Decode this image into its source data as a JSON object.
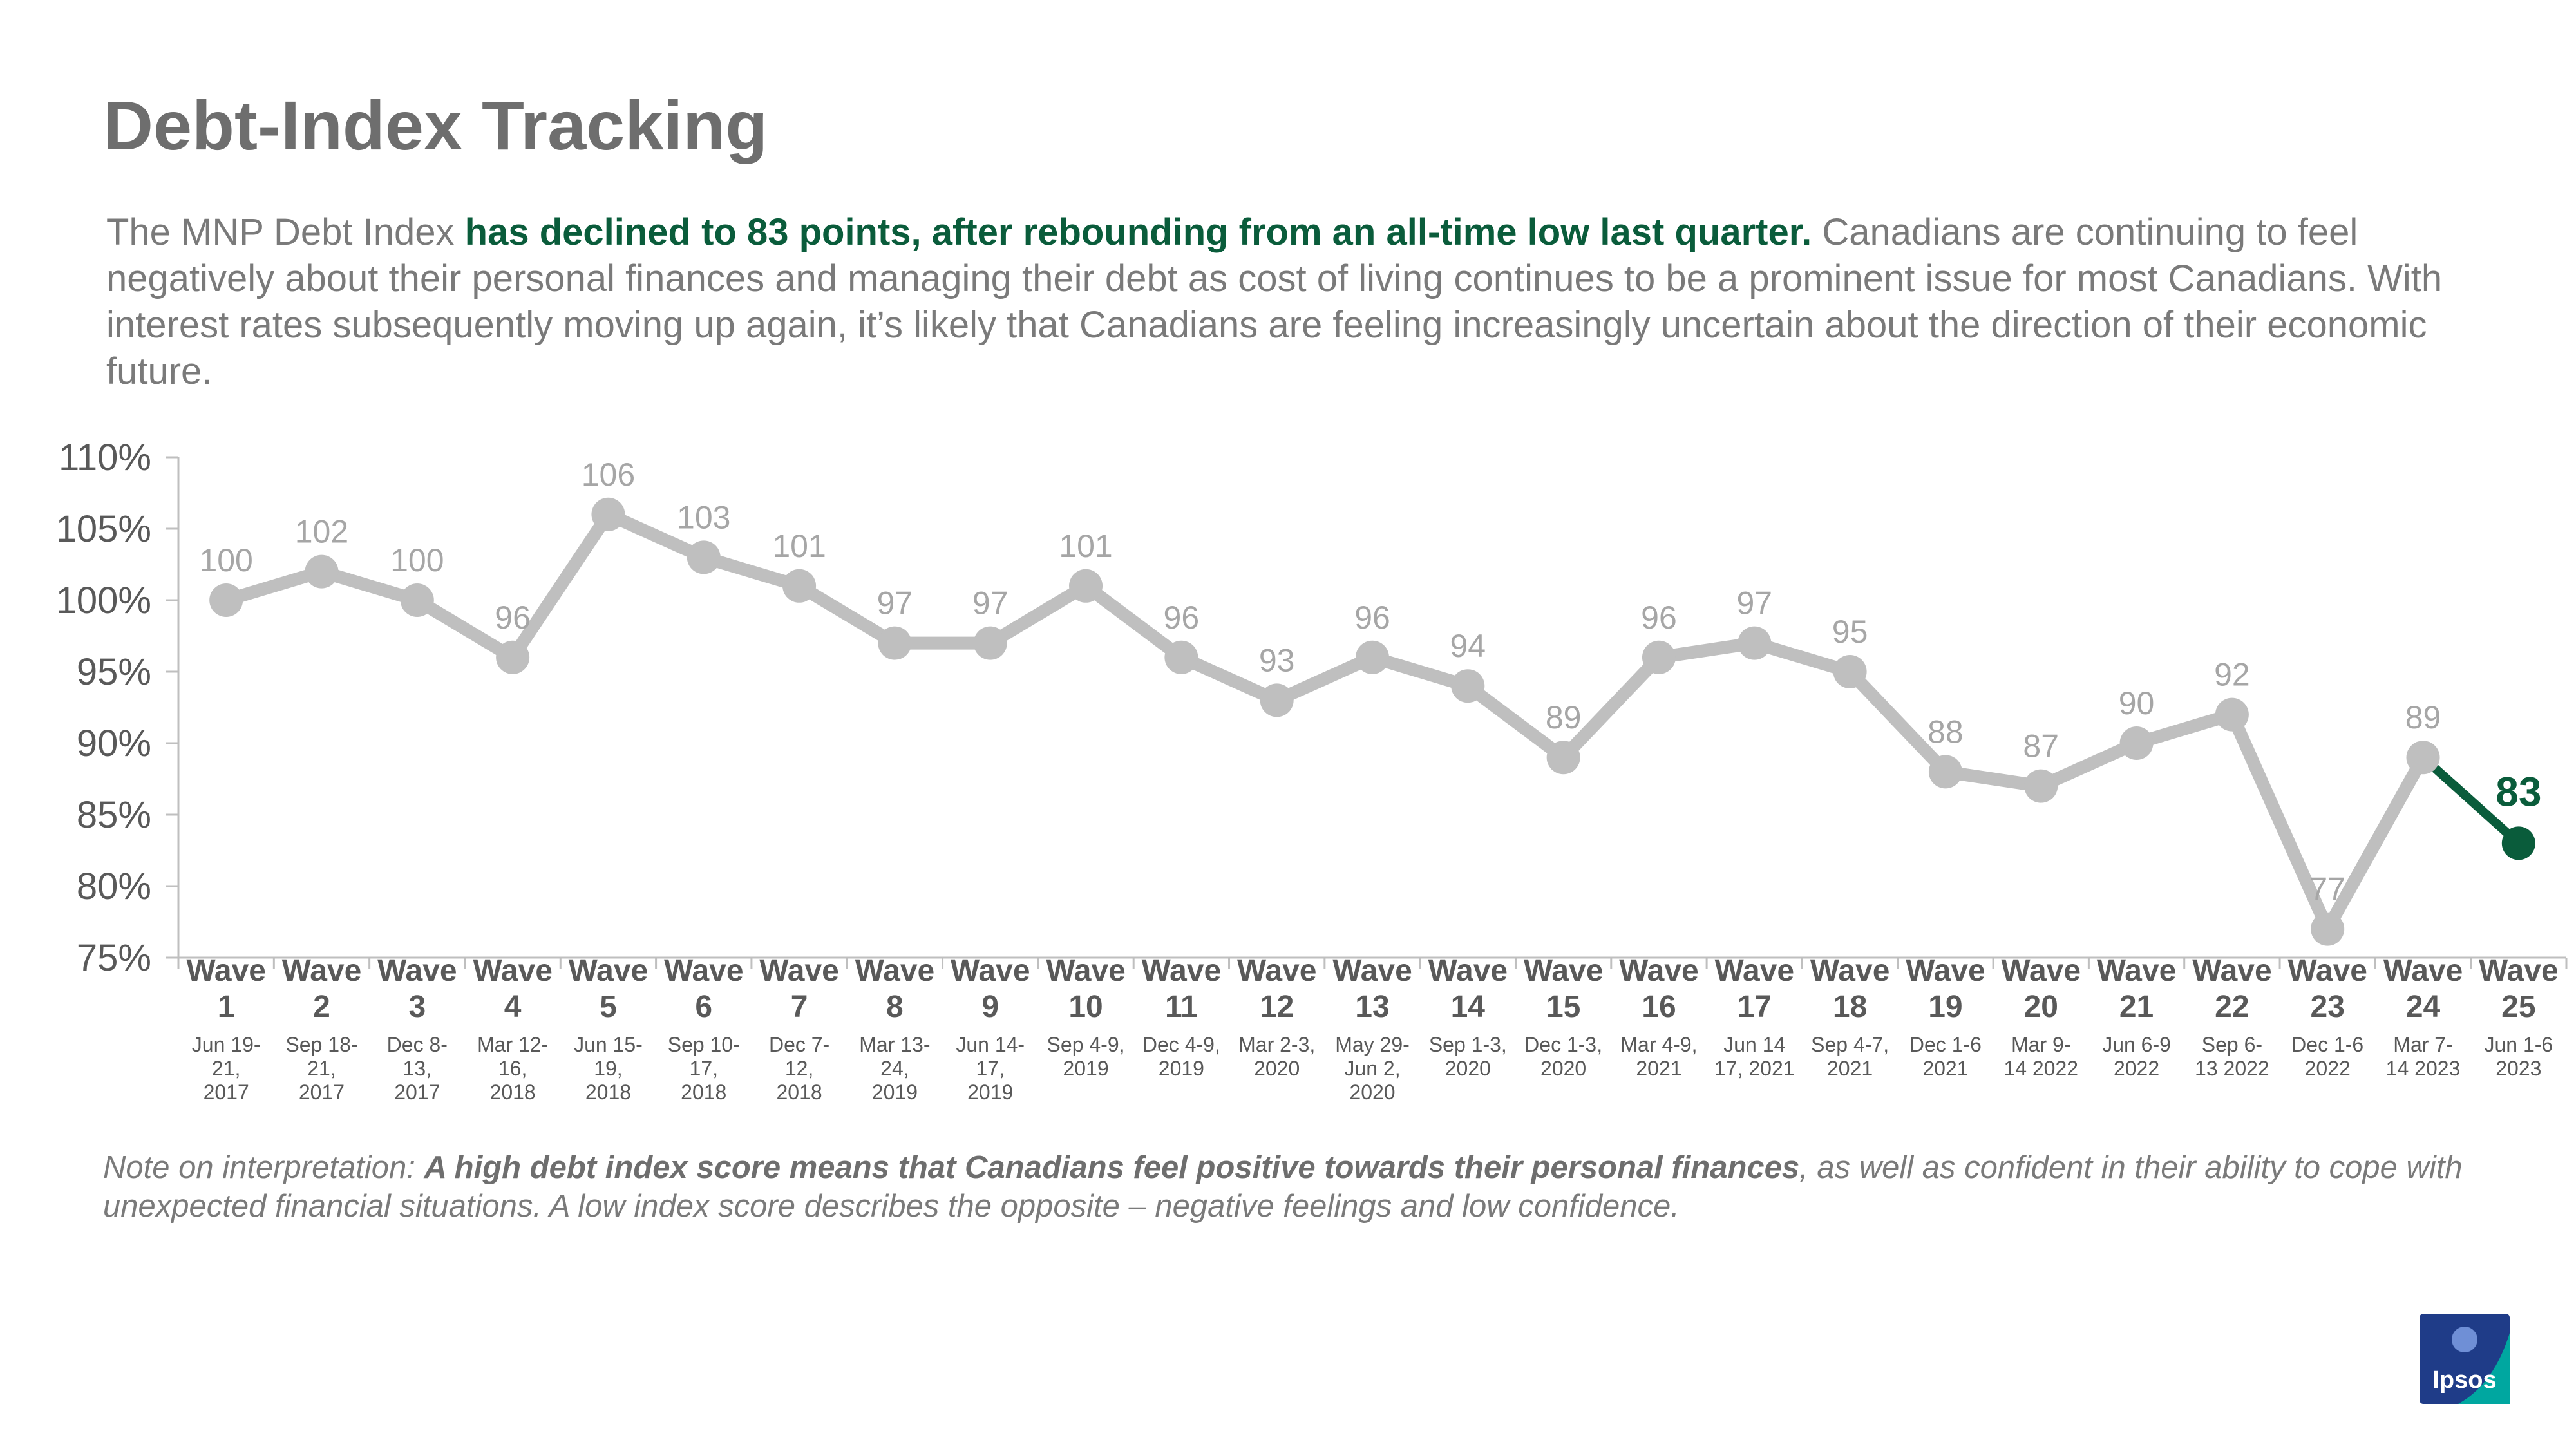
{
  "title": "Debt-Index Tracking",
  "intro": {
    "lead": "The MNP Debt Index ",
    "highlight": "has declined to 83 points, after rebounding from an all-time low last quarter.",
    "rest": " Canadians are continuing to feel negatively about their personal finances and managing their debt as cost of living continues to be a prominent issue for most Canadians. With interest rates subsequently moving up again, it’s likely that Canadians are feeling increasingly uncertain about the direction of their economic future."
  },
  "note": {
    "lead": "Note on interpretation: ",
    "bold": "A high debt index score means that Canadians feel positive towards their personal finances",
    "rest": ", as well as confident in their ability to cope with unexpected financial situations. A low index score describes the opposite – negative feelings and low confidence."
  },
  "logo_text": "Ipsos",
  "colors": {
    "series": "#bfbfbf",
    "highlight": "#0a5c3b",
    "axis_text": "#595959",
    "label": "#a6a6a6",
    "logo": "#1f3c88",
    "logo_accent": "#00a7a0"
  },
  "chart_data": {
    "type": "line",
    "categories": [
      {
        "wave": "Wave",
        "num": "1",
        "date": [
          "Jun 19-",
          "21,",
          "2017"
        ]
      },
      {
        "wave": "Wave",
        "num": "2",
        "date": [
          "Sep 18-",
          "21,",
          "2017"
        ]
      },
      {
        "wave": "Wave",
        "num": "3",
        "date": [
          "Dec 8-",
          "13,",
          "2017"
        ]
      },
      {
        "wave": "Wave",
        "num": "4",
        "date": [
          "Mar 12-",
          "16,",
          "2018"
        ]
      },
      {
        "wave": "Wave",
        "num": "5",
        "date": [
          "Jun 15-",
          "19,",
          "2018"
        ]
      },
      {
        "wave": "Wave",
        "num": "6",
        "date": [
          "Sep 10-",
          "17,",
          "2018"
        ]
      },
      {
        "wave": "Wave",
        "num": "7",
        "date": [
          "Dec 7-",
          "12,",
          "2018"
        ]
      },
      {
        "wave": "Wave",
        "num": "8",
        "date": [
          "Mar 13-",
          "24,",
          "2019"
        ]
      },
      {
        "wave": "Wave",
        "num": "9",
        "date": [
          "Jun 14-",
          "17,",
          "2019"
        ]
      },
      {
        "wave": "Wave",
        "num": "10",
        "date": [
          "Sep 4-9,",
          "2019"
        ]
      },
      {
        "wave": "Wave",
        "num": "11",
        "date": [
          "Dec 4-9,",
          "2019"
        ]
      },
      {
        "wave": "Wave",
        "num": "12",
        "date": [
          "Mar 2-3,",
          "2020"
        ]
      },
      {
        "wave": "Wave",
        "num": "13",
        "date": [
          "May 29-",
          "Jun 2,",
          "2020"
        ]
      },
      {
        "wave": "Wave",
        "num": "14",
        "date": [
          "Sep 1-3,",
          "2020"
        ]
      },
      {
        "wave": "Wave",
        "num": "15",
        "date": [
          "Dec 1-3,",
          "2020"
        ]
      },
      {
        "wave": "Wave",
        "num": "16",
        "date": [
          "Mar 4-9,",
          "2021"
        ]
      },
      {
        "wave": "Wave",
        "num": "17",
        "date": [
          "Jun 14",
          "17, 2021"
        ]
      },
      {
        "wave": "Wave",
        "num": "18",
        "date": [
          "Sep 4-7,",
          "2021"
        ]
      },
      {
        "wave": "Wave",
        "num": "19",
        "date": [
          "Dec 1-6",
          "2021"
        ]
      },
      {
        "wave": "Wave",
        "num": "20",
        "date": [
          "Mar 9-",
          "14 2022"
        ]
      },
      {
        "wave": "Wave",
        "num": "21",
        "date": [
          "Jun 6-9",
          "2022"
        ]
      },
      {
        "wave": "Wave",
        "num": "22",
        "date": [
          "Sep 6-",
          "13 2022"
        ]
      },
      {
        "wave": "Wave",
        "num": "23",
        "date": [
          "Dec 1-6",
          "2022"
        ]
      },
      {
        "wave": "Wave",
        "num": "24",
        "date": [
          "Mar 7-",
          "14 2023"
        ]
      },
      {
        "wave": "Wave",
        "num": "25",
        "date": [
          "Jun 1-6",
          "2023"
        ]
      }
    ],
    "values": [
      100,
      102,
      100,
      96,
      106,
      103,
      101,
      97,
      97,
      101,
      96,
      93,
      96,
      94,
      89,
      96,
      97,
      95,
      88,
      87,
      90,
      92,
      77,
      89,
      83
    ],
    "highlight_last": true,
    "ylim": [
      75,
      110
    ],
    "yticks": [
      "75%",
      "80%",
      "85%",
      "90%",
      "95%",
      "100%",
      "105%",
      "110%"
    ],
    "ytick_values": [
      75,
      80,
      85,
      90,
      95,
      100,
      105,
      110
    ],
    "grid": false,
    "legend": "none"
  }
}
